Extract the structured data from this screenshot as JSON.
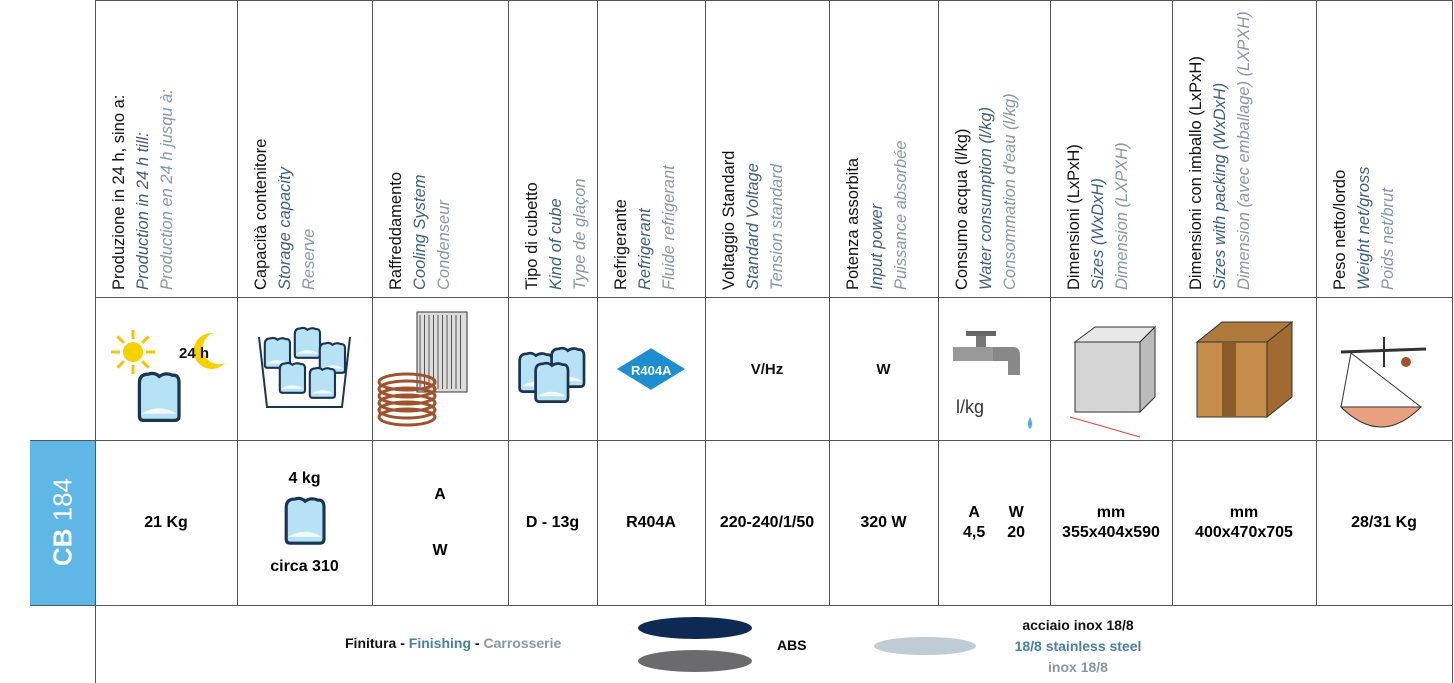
{
  "model": {
    "name": "CB",
    "number": "184"
  },
  "columns": [
    {
      "header": [
        "Produzione in 24 h, sino  a:",
        "Production in 24 h till:",
        "Production en 24 h jusqu à:"
      ],
      "icon": "24 h",
      "value": [
        "21 Kg"
      ]
    },
    {
      "header": [
        "Capacità contenitore",
        "Storage capacity",
        "Reserve"
      ],
      "value": [
        "4 kg",
        "circa 310"
      ]
    },
    {
      "header": [
        "Raffreddamento",
        "Cooling System",
        "Condenseur"
      ],
      "value": [
        "A",
        "W"
      ]
    },
    {
      "header": [
        "Tipo di cubetto",
        "Kind of cube",
        "Type de glaçon"
      ],
      "value": [
        "D - 13g"
      ]
    },
    {
      "header": [
        "Refrigerante",
        "Refrigerant",
        "Fluide refrigerant"
      ],
      "icon": "R404A",
      "value": [
        "R404A"
      ]
    },
    {
      "header": [
        "Voltaggio Standard",
        "Standard  Voltage",
        "Tension standard"
      ],
      "icon": "V/Hz",
      "value": [
        "220-240/1/50"
      ]
    },
    {
      "header": [
        "Potenza assorbita",
        "Input power",
        "Puissance absorbée"
      ],
      "icon": "W",
      "value": [
        "320 W"
      ]
    },
    {
      "header": [
        "Consumo acqua (l/kg)",
        "Water consumption (l/kg)",
        "Consommation d'eau (l/kg)"
      ],
      "icon": "l/kg",
      "value": [
        [
          "A",
          "4,5"
        ],
        [
          "W",
          "20"
        ]
      ]
    },
    {
      "header": [
        "Dimensioni (LxPxH)",
        "Sizes (WxDxH)",
        "Dimension (LXPXH)"
      ],
      "value": [
        "mm",
        "355x404x590"
      ]
    },
    {
      "header": [
        "Dimensioni con imballo (LxPxH)",
        "Sizes with packing (WxDxH)",
        "Dimension (avec emballage) (LXPXH)"
      ],
      "value": [
        "mm",
        "400x470x705"
      ]
    },
    {
      "header": [
        "Peso netto/lordo",
        "Weight net/gross",
        "Poids net/brut"
      ],
      "value": [
        "28/31 Kg"
      ]
    }
  ],
  "finishing": {
    "label": [
      "Finitura",
      "Finishing",
      "Carrosserie"
    ],
    "separator": "-",
    "abs": "ABS",
    "steel": [
      "acciaio inox 18/8",
      "18/8 stainless steel",
      "inox 18/8"
    ]
  }
}
